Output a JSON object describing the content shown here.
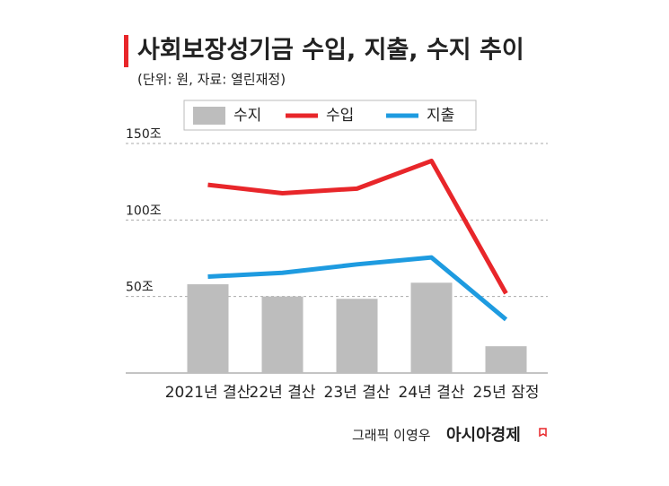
{
  "chart_data": {
    "type": "combo",
    "title": "사회보장성기금 수입, 지출, 수지 추이",
    "subtitle": "(단위: 원, 자료: 열린재정)",
    "categories": [
      "2021년 결산",
      "22년 결산",
      "23년 결산",
      "24년 결산",
      "25년 잠정"
    ],
    "series": [
      {
        "name": "수지",
        "type": "bar",
        "color": "#bdbdbd",
        "values": [
          58,
          50,
          48.5,
          59,
          17.5
        ]
      },
      {
        "name": "수입",
        "type": "line",
        "color": "#e8262a",
        "values": [
          123,
          117.5,
          120.5,
          138.6,
          52
        ]
      },
      {
        "name": "지출",
        "type": "line",
        "color": "#1e9be0",
        "values": [
          63,
          65.5,
          71,
          75.5,
          35
        ]
      }
    ],
    "ylim": [
      0,
      150
    ],
    "yticks": [
      {
        "value": 50,
        "label": "50조"
      },
      {
        "value": 100,
        "label": "100조"
      },
      {
        "value": 150,
        "label": "150조"
      }
    ],
    "grid": true,
    "credit": "그래픽 이영우",
    "source": "아시아경제"
  }
}
